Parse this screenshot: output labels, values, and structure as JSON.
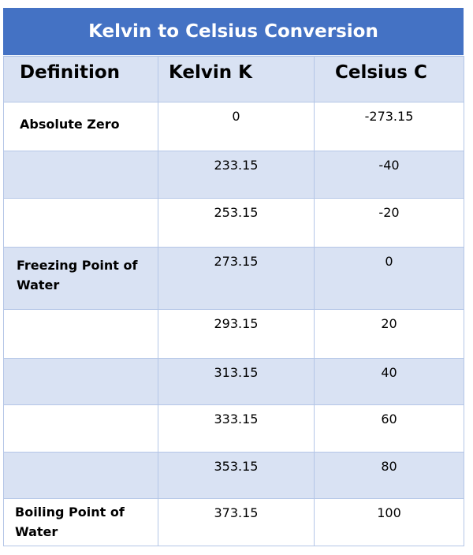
{
  "title": "Kelvin to Celsius Conversion",
  "headers": {
    "definition": "Definition",
    "kelvin": "Kelvin K",
    "celsius": "Celsius C"
  },
  "rows": [
    {
      "definition": "Absolute Zero",
      "kelvin": "0",
      "celsius": "-273.15"
    },
    {
      "definition": "",
      "kelvin": "233.15",
      "celsius": "-40"
    },
    {
      "definition": "",
      "kelvin": "253.15",
      "celsius": "-20"
    },
    {
      "definition": "Freezing Point of Water",
      "kelvin": "273.15",
      "celsius": "0"
    },
    {
      "definition": "",
      "kelvin": "293.15",
      "celsius": "20"
    },
    {
      "definition": "",
      "kelvin": "313.15",
      "celsius": "40"
    },
    {
      "definition": "",
      "kelvin": "333.15",
      "celsius": "60"
    },
    {
      "definition": "",
      "kelvin": "353.15",
      "celsius": "80"
    },
    {
      "definition": "Boiling Point of Water",
      "kelvin": "373.15",
      "celsius": "100"
    }
  ],
  "colors": {
    "title_background": "#4472c4",
    "header_background": "#d9e2f3",
    "band_background": "#d9e2f3",
    "border": "#b4c6e7"
  }
}
